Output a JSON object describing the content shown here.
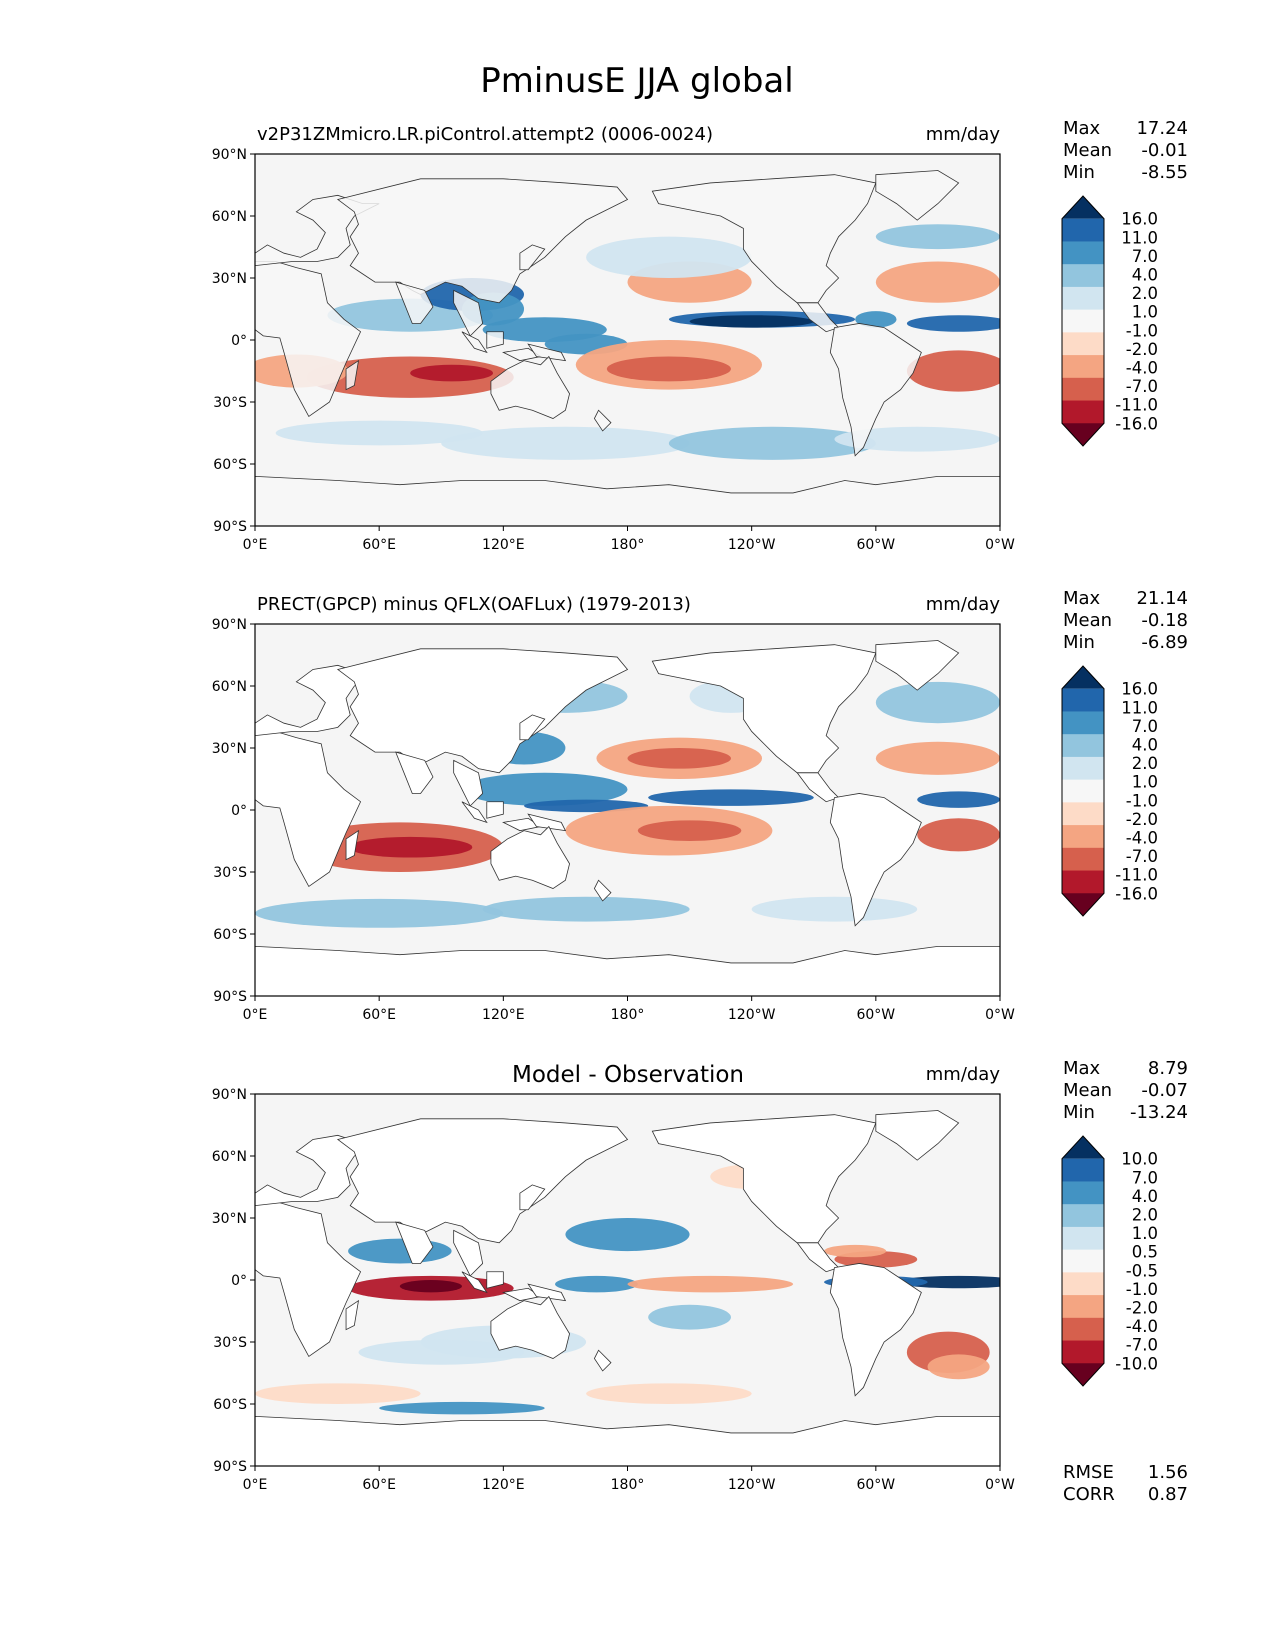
{
  "figure": {
    "title": "PminusE JJA global",
    "lat_ticks": [
      "90°N",
      "60°N",
      "30°N",
      "0°",
      "30°S",
      "60°S",
      "90°S"
    ],
    "lon_ticks": [
      "0°E",
      "60°E",
      "120°E",
      "180°",
      "120°W",
      "60°W",
      "0°W"
    ]
  },
  "colors": {
    "div_10": [
      "#67001f",
      "#b2182b",
      "#d6604d",
      "#f4a582",
      "#fddbc7",
      "#f7f7f7",
      "#d1e5f0",
      "#92c5de",
      "#4393c3",
      "#2166ac",
      "#053061"
    ],
    "land": "#ffffff",
    "ocean_neutral": "#f5f5f5"
  },
  "panels": [
    {
      "id": "model",
      "left_title": "v2P31ZMmicro.LR.piControl.attempt2 (0006-0024)",
      "center_title": "",
      "units": "mm/day",
      "stats": {
        "max_label": "Max",
        "max": "17.24",
        "mean_label": "Mean",
        "mean": "-0.01",
        "min_label": "Min",
        "min": "-8.55"
      },
      "levels": [
        "16.0",
        "11.0",
        "7.0",
        "4.0",
        "2.0",
        "1.0",
        "-1.0",
        "-2.0",
        "-4.0",
        "-7.0",
        "-11.0",
        "-16.0"
      ]
    },
    {
      "id": "obs",
      "left_title": "PRECT(GPCP) minus QFLX(OAFLux) (1979-2013)",
      "center_title": "",
      "units": "mm/day",
      "stats": {
        "max_label": "Max",
        "max": "21.14",
        "mean_label": "Mean",
        "mean": "-0.18",
        "min_label": "Min",
        "min": "-6.89"
      },
      "levels": [
        "16.0",
        "11.0",
        "7.0",
        "4.0",
        "2.0",
        "1.0",
        "-1.0",
        "-2.0",
        "-4.0",
        "-7.0",
        "-11.0",
        "-16.0"
      ]
    },
    {
      "id": "diff",
      "left_title": "",
      "center_title": "Model - Observation",
      "units": "mm/day",
      "stats": {
        "max_label": "Max",
        "max": "8.79",
        "mean_label": "Mean",
        "mean": "-0.07",
        "min_label": "Min",
        "min": "-13.24"
      },
      "levels": [
        "10.0",
        "7.0",
        "4.0",
        "2.0",
        "1.0",
        "0.5",
        "-0.5",
        "-1.0",
        "-2.0",
        "-4.0",
        "-7.0",
        "-10.0"
      ],
      "rmse_label": "RMSE",
      "rmse": "1.56",
      "corr_label": "CORR",
      "corr": "0.87"
    }
  ]
}
